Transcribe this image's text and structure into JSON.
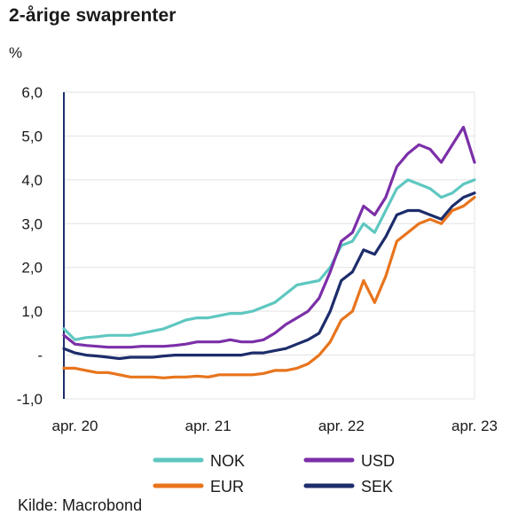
{
  "title": "2-årige swaprenter",
  "unit": "%",
  "source": "Kilde: Macrobond",
  "colors": {
    "NOK": "#5ec7c0",
    "USD": "#7b2fa8",
    "EUR": "#e8741c",
    "SEK": "#1d2d6b",
    "axis": "#1d2d6b",
    "grid": "#e3e3e3"
  },
  "chart_data": {
    "type": "line",
    "title": "2-årige swaprenter",
    "ylabel": "%",
    "ylim": [
      -1.0,
      6.0
    ],
    "yticks": [
      {
        "value": 6.0,
        "label": "6,0"
      },
      {
        "value": 5.0,
        "label": "5,0"
      },
      {
        "value": 4.0,
        "label": "4,0"
      },
      {
        "value": 3.0,
        "label": "3,0"
      },
      {
        "value": 2.0,
        "label": "2,0"
      },
      {
        "value": 1.0,
        "label": "1,0"
      },
      {
        "value": 0.0,
        "label": "-"
      },
      {
        "value": -1.0,
        "label": "-1,0"
      }
    ],
    "xticks": [
      {
        "value": "2020-04",
        "label": "apr. 20"
      },
      {
        "value": "2021-04",
        "label": "apr. 21"
      },
      {
        "value": "2022-04",
        "label": "apr. 22"
      },
      {
        "value": "2023-04",
        "label": "apr. 23"
      }
    ],
    "grid": true,
    "legend_position": "bottom",
    "x": [
      "2020-03",
      "2020-04",
      "2020-05",
      "2020-06",
      "2020-07",
      "2020-08",
      "2020-09",
      "2020-10",
      "2020-11",
      "2020-12",
      "2021-01",
      "2021-02",
      "2021-03",
      "2021-04",
      "2021-05",
      "2021-06",
      "2021-07",
      "2021-08",
      "2021-09",
      "2021-10",
      "2021-11",
      "2021-12",
      "2022-01",
      "2022-02",
      "2022-03",
      "2022-04",
      "2022-05",
      "2022-06",
      "2022-07",
      "2022-08",
      "2022-09",
      "2022-10",
      "2022-11",
      "2022-12",
      "2023-01",
      "2023-02",
      "2023-03",
      "2023-04"
    ],
    "series": [
      {
        "name": "NOK",
        "values": [
          0.6,
          0.35,
          0.4,
          0.42,
          0.45,
          0.45,
          0.45,
          0.5,
          0.55,
          0.6,
          0.7,
          0.8,
          0.85,
          0.85,
          0.9,
          0.95,
          0.95,
          1.0,
          1.1,
          1.2,
          1.4,
          1.6,
          1.65,
          1.7,
          2.0,
          2.5,
          2.6,
          3.0,
          2.8,
          3.3,
          3.8,
          4.0,
          3.9,
          3.8,
          3.6,
          3.7,
          3.9,
          4.0
        ]
      },
      {
        "name": "USD",
        "values": [
          0.45,
          0.25,
          0.22,
          0.2,
          0.18,
          0.18,
          0.18,
          0.2,
          0.2,
          0.2,
          0.22,
          0.25,
          0.3,
          0.3,
          0.3,
          0.35,
          0.3,
          0.3,
          0.35,
          0.5,
          0.7,
          0.85,
          1.0,
          1.3,
          1.9,
          2.6,
          2.8,
          3.4,
          3.2,
          3.6,
          4.3,
          4.6,
          4.8,
          4.7,
          4.4,
          4.8,
          5.2,
          4.4
        ]
      },
      {
        "name": "EUR",
        "values": [
          -0.3,
          -0.3,
          -0.35,
          -0.4,
          -0.4,
          -0.45,
          -0.5,
          -0.5,
          -0.5,
          -0.52,
          -0.5,
          -0.5,
          -0.48,
          -0.5,
          -0.45,
          -0.45,
          -0.45,
          -0.45,
          -0.42,
          -0.35,
          -0.35,
          -0.3,
          -0.2,
          0.0,
          0.3,
          0.8,
          1.0,
          1.7,
          1.2,
          1.8,
          2.6,
          2.8,
          3.0,
          3.1,
          3.0,
          3.3,
          3.4,
          3.6
        ]
      },
      {
        "name": "SEK",
        "values": [
          0.15,
          0.05,
          0.0,
          -0.02,
          -0.05,
          -0.08,
          -0.05,
          -0.05,
          -0.05,
          -0.02,
          0.0,
          0.0,
          0.0,
          0.0,
          0.0,
          0.0,
          0.0,
          0.05,
          0.05,
          0.1,
          0.15,
          0.25,
          0.35,
          0.5,
          1.0,
          1.7,
          1.9,
          2.4,
          2.3,
          2.7,
          3.2,
          3.3,
          3.3,
          3.2,
          3.1,
          3.4,
          3.6,
          3.7
        ]
      }
    ]
  },
  "legend": [
    {
      "name": "NOK"
    },
    {
      "name": "USD"
    },
    {
      "name": "EUR"
    },
    {
      "name": "SEK"
    }
  ]
}
